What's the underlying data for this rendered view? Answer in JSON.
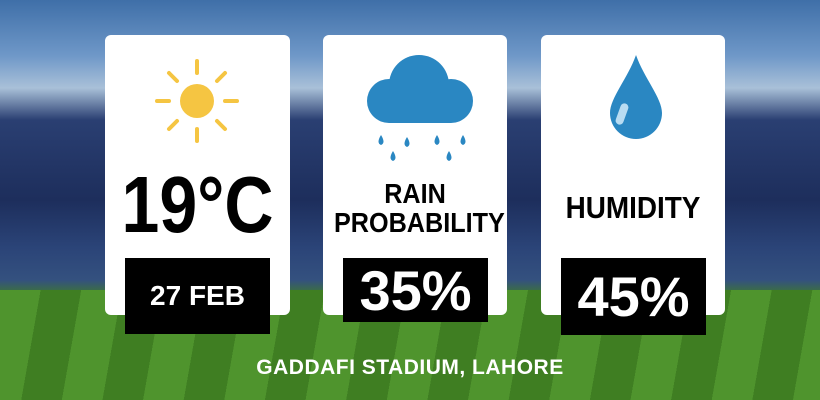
{
  "cards": [
    {
      "value": "19°C",
      "label": "27 FEB"
    },
    {
      "label": "RAIN PROBABILITY",
      "value": "35%"
    },
    {
      "label": "HUMIDITY",
      "value": "45%"
    }
  ],
  "footer": {
    "location": "GADDAFI STADIUM, LAHORE"
  }
}
